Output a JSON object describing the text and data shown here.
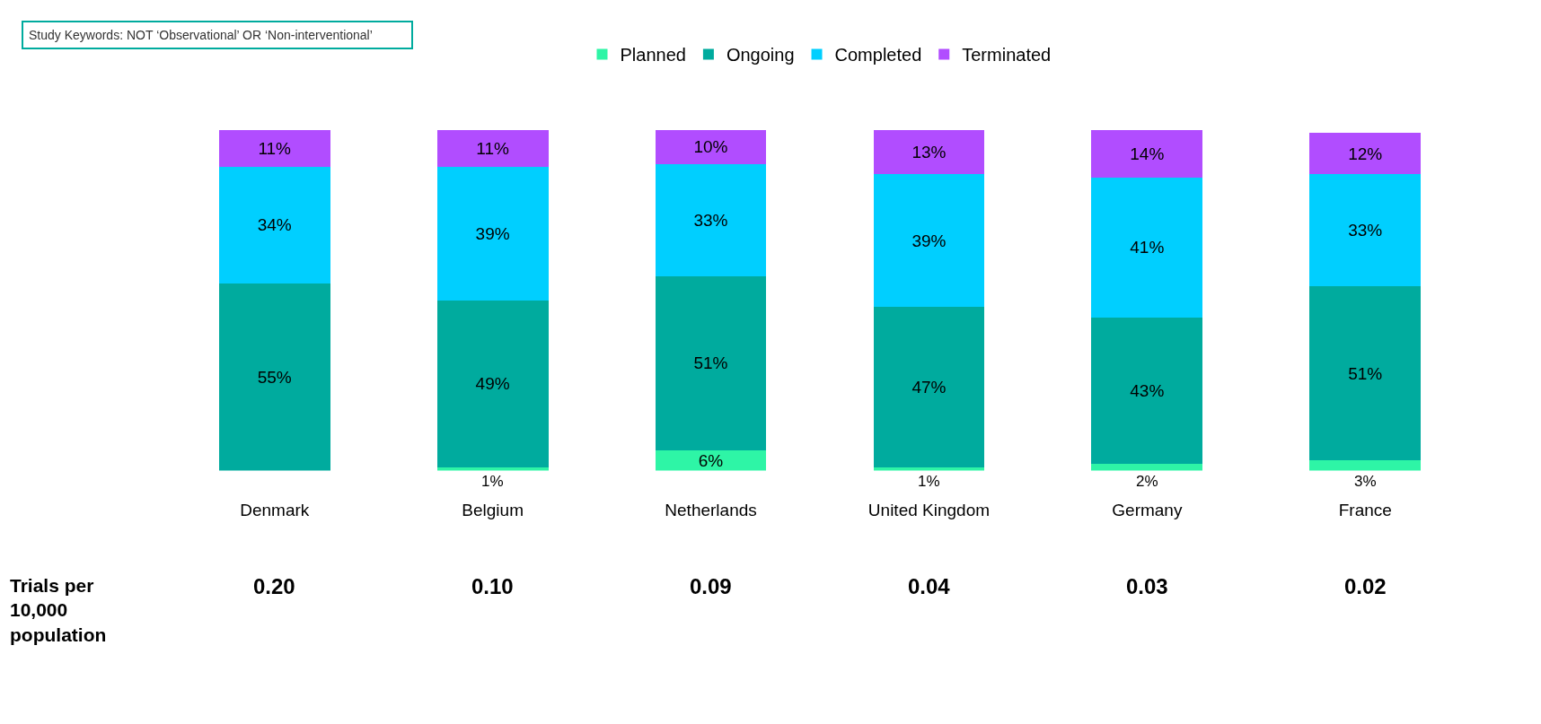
{
  "chart_data": {
    "type": "bar",
    "stacked": true,
    "legend": "top",
    "categories": [
      "Denmark",
      "Belgium",
      "Netherlands",
      "United Kingdom",
      "Germany",
      "France"
    ],
    "series": [
      {
        "name": "Planned",
        "color": "#2ef5a6",
        "values": [
          0,
          1,
          6,
          1,
          2,
          3
        ],
        "value_labels": [
          null,
          "1%",
          "6%",
          "1%",
          "2%",
          "3%"
        ]
      },
      {
        "name": "Ongoing",
        "color": "#00ab9e",
        "values": [
          55,
          49,
          51,
          47,
          43,
          51
        ],
        "value_labels": [
          "55%",
          "49%",
          "51%",
          "47%",
          "43%",
          "51%"
        ]
      },
      {
        "name": "Completed",
        "color": "#00cfff",
        "values": [
          34,
          39,
          33,
          39,
          41,
          33
        ],
        "value_labels": [
          "34%",
          "39%",
          "33%",
          "39%",
          "41%",
          "33%"
        ]
      },
      {
        "name": "Terminated",
        "color": "#b14dff",
        "values": [
          11,
          11,
          10,
          13,
          14,
          12
        ],
        "value_labels": [
          "11%",
          "11%",
          "10%",
          "13%",
          "14%",
          "12%"
        ]
      }
    ],
    "annotations": [
      "Study Keywords: NOT ‘Observational’ OR ‘Non-interventional’",
      "Trials per 10,000 population",
      "0.20",
      "0.10",
      "0.09",
      "0.04",
      "0.03",
      "0.02"
    ]
  }
}
